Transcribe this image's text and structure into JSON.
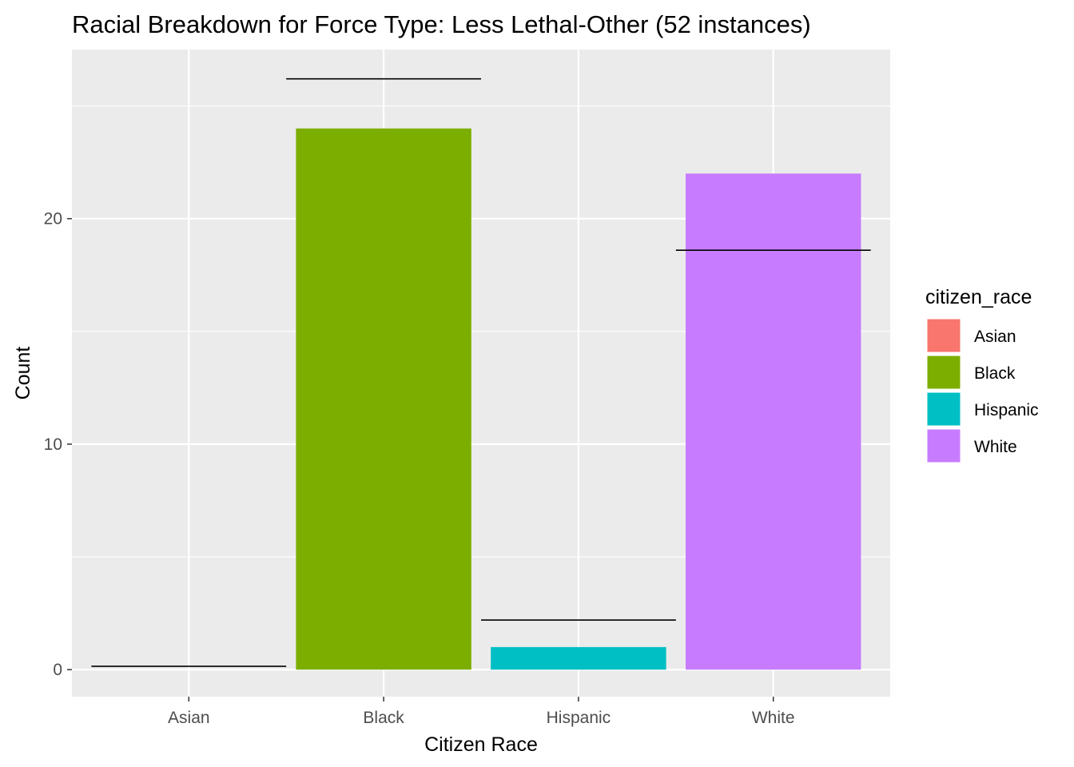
{
  "chart_data": {
    "type": "bar",
    "title": "Racial Breakdown for Force Type: Less Lethal-Other (52 instances)",
    "xlabel": "Citizen Race",
    "ylabel": "Count",
    "categories": [
      "Asian",
      "Black",
      "Hispanic",
      "White"
    ],
    "values": [
      0,
      24,
      1,
      22
    ],
    "reference_lines": [
      0.15,
      26.2,
      2.2,
      18.6
    ],
    "colors": [
      "#F8766D",
      "#7CAE00",
      "#00BFC4",
      "#C77CFF"
    ],
    "ylim": [
      -1.2,
      27.5
    ],
    "yticks": [
      0,
      10,
      20
    ],
    "yticks_labels": [
      "0",
      "10",
      "20"
    ],
    "grid": true,
    "panel_background": "#EBEBEB",
    "legend": {
      "title": "citizen_race",
      "position": "right",
      "items": [
        "Asian",
        "Black",
        "Hispanic",
        "White"
      ]
    }
  }
}
